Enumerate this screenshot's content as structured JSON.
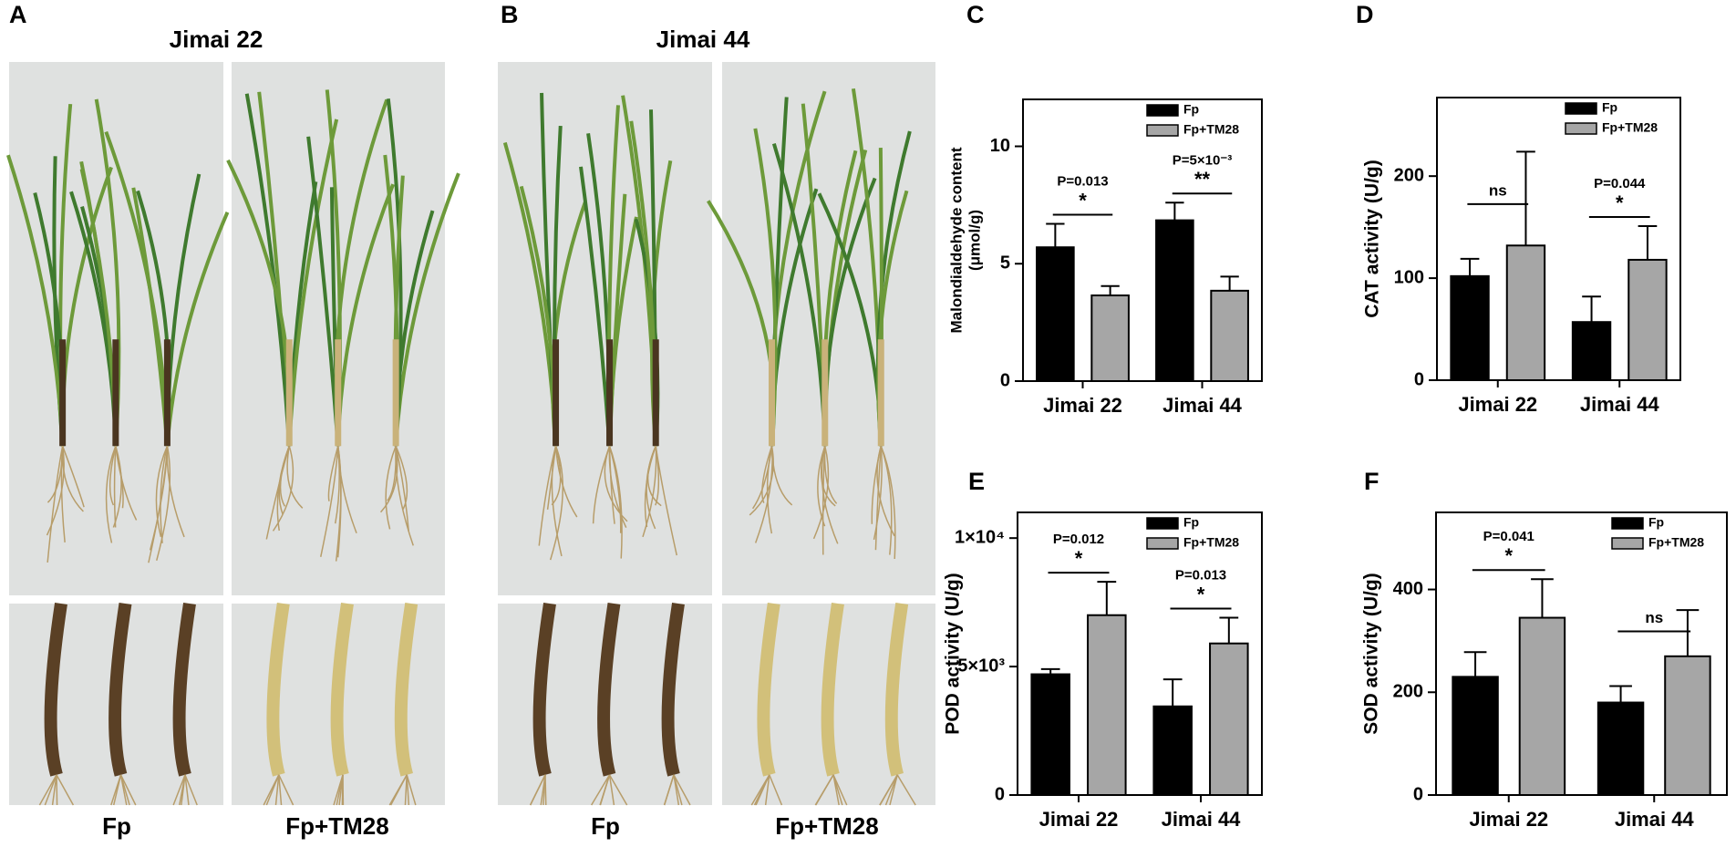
{
  "panels": [
    {
      "letter": "A",
      "title": "Jimai 22",
      "labels": [
        "Fp",
        "Fp+TM28"
      ]
    },
    {
      "letter": "B",
      "title": "Jimai 44",
      "labels": [
        "Fp",
        "Fp+TM28"
      ]
    }
  ],
  "chart_data": [
    {
      "type": "bar",
      "panel": "C",
      "ylabel": "Malondialdehyde content",
      "ylabel2": "(μmol/g)",
      "categories": [
        "Jimai 22",
        "Jimai 44"
      ],
      "series": [
        {
          "name": "Fp",
          "color": "#000000",
          "values": [
            5.7,
            6.85
          ],
          "errors": [
            1.0,
            0.75
          ]
        },
        {
          "name": "Fp+TM28",
          "color": "#a6a6a6",
          "values": [
            3.65,
            3.85
          ],
          "errors": [
            0.4,
            0.6
          ]
        }
      ],
      "ylim": [
        0,
        12
      ],
      "yticks": [
        0,
        5,
        10
      ],
      "annotations": [
        {
          "category": 0,
          "p": "P=0.013",
          "stars": "*"
        },
        {
          "category": 1,
          "p": "P=5×10⁻³",
          "stars": "**"
        }
      ]
    },
    {
      "type": "bar",
      "panel": "D",
      "ylabel": "CAT activity (U/g)",
      "categories": [
        "Jimai 22",
        "Jimai 44"
      ],
      "series": [
        {
          "name": "Fp",
          "color": "#000000",
          "values": [
            102,
            57
          ],
          "errors": [
            17,
            25
          ]
        },
        {
          "name": "Fp+TM28",
          "color": "#a6a6a6",
          "values": [
            132,
            118
          ],
          "errors": [
            92,
            33
          ]
        }
      ],
      "ylim": [
        0,
        277
      ],
      "yticks": [
        0,
        100,
        200
      ],
      "annotations": [
        {
          "category": 0,
          "stars": "ns"
        },
        {
          "category": 1,
          "p": "P=0.044",
          "stars": "*"
        }
      ]
    },
    {
      "type": "bar",
      "panel": "E",
      "ylabel": "POD activity (U/g)",
      "categories": [
        "Jimai 22",
        "Jimai 44"
      ],
      "series": [
        {
          "name": "Fp",
          "color": "#000000",
          "values": [
            4700,
            3450
          ],
          "errors": [
            200,
            1050
          ]
        },
        {
          "name": "Fp+TM28",
          "color": "#a6a6a6",
          "values": [
            7000,
            5900
          ],
          "errors": [
            1300,
            1000
          ]
        }
      ],
      "ylim": [
        0,
        11000
      ],
      "yticks": [
        0,
        {
          "value": 5000,
          "label": "5×10³"
        },
        {
          "value": 10000,
          "label": "1×10⁴"
        }
      ],
      "annotations": [
        {
          "category": 0,
          "p": "P=0.012",
          "stars": "*"
        },
        {
          "category": 1,
          "p": "P=0.013",
          "stars": "*"
        }
      ]
    },
    {
      "type": "bar",
      "panel": "F",
      "ylabel": "SOD activity (U/g)",
      "categories": [
        "Jimai 22",
        "Jimai 44"
      ],
      "series": [
        {
          "name": "Fp",
          "color": "#000000",
          "values": [
            230,
            180
          ],
          "errors": [
            48,
            32
          ]
        },
        {
          "name": "Fp+TM28",
          "color": "#a6a6a6",
          "values": [
            345,
            270
          ],
          "errors": [
            75,
            90
          ]
        }
      ],
      "ylim": [
        0,
        550
      ],
      "yticks": [
        0,
        200,
        400
      ],
      "annotations": [
        {
          "category": 0,
          "p": "P=0.041",
          "stars": "*"
        },
        {
          "category": 1,
          "stars": "ns"
        }
      ]
    }
  ]
}
